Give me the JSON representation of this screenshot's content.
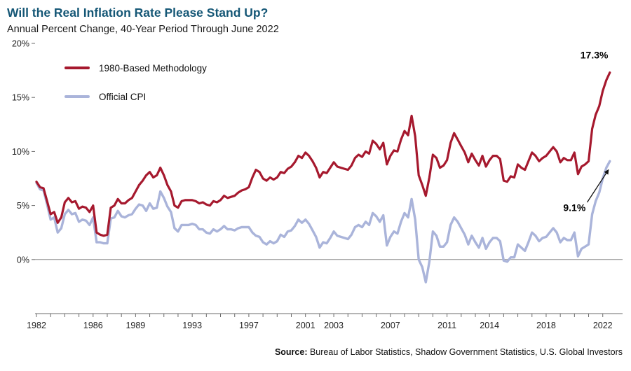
{
  "source": {
    "label": "Source:",
    "text": " Bureau of Labor Statistics, Shadow Government Statistics, U.S. Global Investors"
  },
  "colors": {
    "title": "#155776",
    "axis": "#6b6b6b",
    "zero_line": "#8c8c8c",
    "annotation": "#000000"
  },
  "chart_data": {
    "type": "line",
    "title": "Will the Real Inflation Rate Please Stand Up?",
    "subtitle": "Annual Percent Change, 40-Year Period Through June 2022",
    "xlabel": "",
    "ylabel": "",
    "x_start": 1982.0,
    "x_step": 0.25,
    "x_end": 2022.5,
    "xlim": [
      1981.9,
      2023.4
    ],
    "ylim": [
      -5,
      20
    ],
    "yticks": [
      0,
      5,
      10,
      15,
      20
    ],
    "ytick_labels": [
      "0%",
      "5%",
      "10%",
      "15%",
      "20%"
    ],
    "xticks": [
      1982,
      1986,
      1989,
      1993,
      1997,
      2001,
      2003,
      2007,
      2011,
      2014,
      2018,
      2022
    ],
    "minor_xtick_every_year": true,
    "grid": false,
    "legend_position": "top-left-inside",
    "series": [
      {
        "name": "1980-Based Methodology",
        "color": "#A6192E",
        "width": 3.2,
        "values": [
          7.2,
          6.7,
          6.6,
          5.4,
          4.2,
          4.4,
          3.4,
          3.9,
          5.3,
          5.7,
          5.3,
          5.4,
          4.7,
          4.9,
          4.8,
          4.4,
          5.0,
          2.5,
          2.3,
          2.2,
          2.3,
          4.8,
          5.0,
          5.6,
          5.2,
          5.2,
          5.5,
          5.7,
          6.3,
          6.9,
          7.3,
          7.8,
          8.1,
          7.6,
          7.8,
          8.5,
          7.8,
          6.9,
          6.3,
          5.0,
          4.8,
          5.4,
          5.5,
          5.5,
          5.5,
          5.4,
          5.2,
          5.3,
          5.1,
          5.0,
          5.4,
          5.3,
          5.5,
          5.9,
          5.7,
          5.8,
          5.9,
          6.2,
          6.4,
          6.5,
          6.7,
          7.6,
          8.3,
          8.1,
          7.5,
          7.3,
          7.6,
          7.4,
          7.6,
          8.1,
          8.0,
          8.4,
          8.6,
          9.0,
          9.6,
          9.4,
          9.9,
          9.6,
          9.1,
          8.5,
          7.6,
          8.1,
          8.0,
          8.5,
          9.0,
          8.6,
          8.5,
          8.4,
          8.3,
          8.7,
          9.4,
          9.7,
          9.5,
          10.0,
          9.8,
          11.0,
          10.7,
          10.2,
          10.8,
          8.8,
          9.6,
          10.1,
          10.0,
          11.1,
          11.9,
          11.5,
          13.3,
          11.4,
          7.8,
          6.9,
          5.9,
          7.6,
          9.7,
          9.4,
          8.5,
          8.7,
          9.2,
          10.8,
          11.7,
          11.1,
          10.5,
          9.9,
          9.0,
          9.8,
          9.2,
          8.7,
          9.6,
          8.6,
          9.2,
          9.6,
          9.6,
          9.3,
          7.3,
          7.2,
          7.7,
          7.6,
          8.8,
          8.5,
          8.3,
          9.1,
          9.9,
          9.6,
          9.1,
          9.4,
          9.6,
          10.0,
          10.4,
          10.0,
          9.0,
          9.4,
          9.2,
          9.2,
          9.9,
          7.9,
          8.6,
          8.8,
          9.1,
          12.1,
          13.4,
          14.2,
          15.6,
          16.6,
          17.3
        ]
      },
      {
        "name": "Official CPI",
        "color": "#AAB4DA",
        "width": 3.4,
        "values": [
          7.1,
          6.5,
          6.4,
          5.1,
          3.7,
          3.9,
          2.5,
          2.9,
          4.2,
          4.6,
          4.2,
          4.3,
          3.5,
          3.7,
          3.6,
          3.2,
          3.9,
          1.6,
          1.6,
          1.5,
          1.5,
          3.8,
          3.9,
          4.5,
          4.0,
          3.9,
          4.1,
          4.2,
          4.7,
          5.1,
          5.0,
          4.5,
          5.2,
          4.7,
          4.8,
          6.3,
          5.7,
          4.9,
          4.4,
          2.9,
          2.6,
          3.2,
          3.2,
          3.2,
          3.3,
          3.2,
          2.8,
          2.8,
          2.5,
          2.4,
          2.8,
          2.6,
          2.8,
          3.1,
          2.8,
          2.8,
          2.7,
          2.9,
          3.0,
          3.0,
          3.0,
          2.5,
          2.2,
          2.1,
          1.6,
          1.4,
          1.7,
          1.5,
          1.7,
          2.3,
          2.1,
          2.6,
          2.7,
          3.1,
          3.7,
          3.4,
          3.7,
          3.3,
          2.7,
          2.1,
          1.1,
          1.6,
          1.5,
          2.0,
          2.6,
          2.2,
          2.1,
          2.0,
          1.9,
          2.3,
          3.0,
          3.2,
          3.0,
          3.5,
          3.2,
          4.3,
          4.0,
          3.5,
          4.1,
          1.3,
          2.1,
          2.6,
          2.4,
          3.5,
          4.3,
          3.9,
          5.6,
          3.7,
          0.0,
          -0.7,
          -2.1,
          -0.2,
          2.6,
          2.2,
          1.2,
          1.2,
          1.6,
          3.2,
          3.9,
          3.5,
          2.9,
          2.3,
          1.4,
          2.2,
          1.6,
          1.1,
          2.0,
          1.0,
          1.6,
          2.0,
          2.0,
          1.7,
          -0.1,
          -0.2,
          0.2,
          0.2,
          1.4,
          1.1,
          0.8,
          1.6,
          2.5,
          2.2,
          1.7,
          2.0,
          2.1,
          2.5,
          2.9,
          2.5,
          1.6,
          2.0,
          1.8,
          1.8,
          2.5,
          0.3,
          1.0,
          1.2,
          1.4,
          4.2,
          5.4,
          6.2,
          7.5,
          8.5,
          9.1
        ]
      }
    ],
    "annotations": [
      {
        "text": "17.3%",
        "x": 2021.4,
        "y": 18.6
      },
      {
        "text": "9.1%",
        "x": 2020.0,
        "y": 4.5,
        "arrow": {
          "x1": 2020.9,
          "y1": 5.3,
          "x2": 2022.4,
          "y2": 8.3
        }
      }
    ],
    "source": "Bureau of Labor Statistics, Shadow Government Statistics, U.S. Global Investors"
  }
}
